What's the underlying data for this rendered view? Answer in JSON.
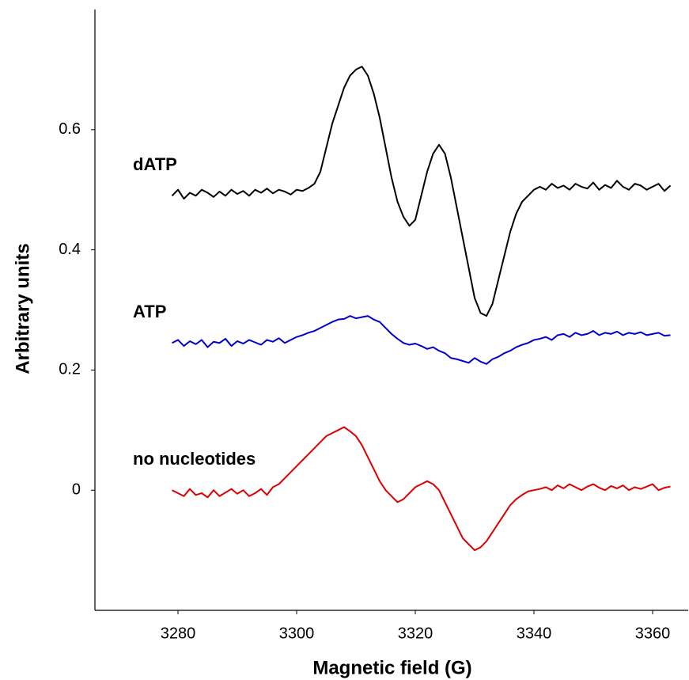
{
  "chart_data": {
    "type": "line",
    "xlabel": "Magnetic field (G)",
    "ylabel": "Arbitrary units",
    "xlim": [
      3266,
      3366
    ],
    "xticks": [
      3280,
      3300,
      3320,
      3340,
      3360
    ],
    "ylim": [
      -0.2,
      0.8
    ],
    "yticks": [
      0,
      0.2,
      0.4,
      0.6
    ],
    "x": [
      3279,
      3280,
      3281,
      3282,
      3283,
      3284,
      3285,
      3286,
      3287,
      3288,
      3289,
      3290,
      3291,
      3292,
      3293,
      3294,
      3295,
      3296,
      3297,
      3298,
      3299,
      3300,
      3301,
      3302,
      3303,
      3304,
      3305,
      3306,
      3307,
      3308,
      3309,
      3310,
      3311,
      3312,
      3313,
      3314,
      3315,
      3316,
      3317,
      3318,
      3319,
      3320,
      3321,
      3322,
      3323,
      3324,
      3325,
      3326,
      3327,
      3328,
      3329,
      3330,
      3331,
      3332,
      3333,
      3334,
      3335,
      3336,
      3337,
      3338,
      3339,
      3340,
      3341,
      3342,
      3343,
      3344,
      3345,
      3346,
      3347,
      3348,
      3349,
      3350,
      3351,
      3352,
      3353,
      3354,
      3355,
      3356,
      3357,
      3358,
      3359,
      3360,
      3361,
      3362,
      3363
    ],
    "series": [
      {
        "name": "dATP",
        "color": "#000000",
        "values": [
          0.49,
          0.5,
          0.485,
          0.495,
          0.49,
          0.5,
          0.495,
          0.488,
          0.497,
          0.49,
          0.5,
          0.493,
          0.498,
          0.49,
          0.5,
          0.495,
          0.502,
          0.494,
          0.5,
          0.497,
          0.492,
          0.5,
          0.498,
          0.503,
          0.51,
          0.53,
          0.57,
          0.61,
          0.64,
          0.67,
          0.69,
          0.7,
          0.705,
          0.69,
          0.66,
          0.62,
          0.57,
          0.52,
          0.48,
          0.455,
          0.44,
          0.45,
          0.49,
          0.53,
          0.56,
          0.575,
          0.56,
          0.52,
          0.47,
          0.42,
          0.37,
          0.32,
          0.295,
          0.29,
          0.31,
          0.35,
          0.39,
          0.43,
          0.46,
          0.48,
          0.49,
          0.5,
          0.505,
          0.5,
          0.51,
          0.503,
          0.507,
          0.5,
          0.51,
          0.505,
          0.502,
          0.512,
          0.5,
          0.508,
          0.503,
          0.515,
          0.505,
          0.5,
          0.51,
          0.507,
          0.5,
          0.505,
          0.51,
          0.498,
          0.507
        ]
      },
      {
        "name": "ATP",
        "color": "#0000cc",
        "values": [
          0.245,
          0.25,
          0.24,
          0.248,
          0.243,
          0.25,
          0.238,
          0.247,
          0.245,
          0.252,
          0.24,
          0.248,
          0.244,
          0.25,
          0.246,
          0.242,
          0.25,
          0.247,
          0.253,
          0.245,
          0.25,
          0.255,
          0.258,
          0.262,
          0.265,
          0.27,
          0.275,
          0.28,
          0.284,
          0.285,
          0.29,
          0.286,
          0.288,
          0.29,
          0.284,
          0.28,
          0.27,
          0.26,
          0.252,
          0.245,
          0.242,
          0.244,
          0.24,
          0.235,
          0.238,
          0.232,
          0.228,
          0.22,
          0.218,
          0.215,
          0.212,
          0.22,
          0.214,
          0.21,
          0.218,
          0.222,
          0.228,
          0.232,
          0.238,
          0.242,
          0.245,
          0.25,
          0.252,
          0.255,
          0.25,
          0.258,
          0.26,
          0.255,
          0.262,
          0.258,
          0.26,
          0.265,
          0.258,
          0.262,
          0.26,
          0.264,
          0.258,
          0.262,
          0.26,
          0.263,
          0.258,
          0.26,
          0.262,
          0.257,
          0.258
        ]
      },
      {
        "name": "no nucleotides",
        "color": "#dd0000",
        "values": [
          0,
          -0.005,
          -0.01,
          0.002,
          -0.008,
          -0.005,
          -0.012,
          0,
          -0.01,
          -0.004,
          0.002,
          -0.006,
          0,
          -0.01,
          -0.005,
          0.002,
          -0.008,
          0.005,
          0.01,
          0.02,
          0.03,
          0.04,
          0.05,
          0.06,
          0.07,
          0.08,
          0.09,
          0.095,
          0.1,
          0.105,
          0.098,
          0.09,
          0.075,
          0.055,
          0.035,
          0.015,
          0,
          -0.01,
          -0.02,
          -0.015,
          -0.005,
          0.005,
          0.01,
          0.015,
          0.01,
          0,
          -0.02,
          -0.04,
          -0.06,
          -0.08,
          -0.09,
          -0.1,
          -0.095,
          -0.085,
          -0.07,
          -0.055,
          -0.04,
          -0.025,
          -0.015,
          -0.008,
          -0.002,
          0,
          0.002,
          0.005,
          0,
          0.008,
          0.003,
          0.01,
          0.005,
          0,
          0.006,
          0.01,
          0.004,
          0,
          0.007,
          0.003,
          0.008,
          0,
          0.005,
          0.002,
          0.006,
          0.01,
          0,
          0.004,
          0.006
        ]
      }
    ]
  }
}
